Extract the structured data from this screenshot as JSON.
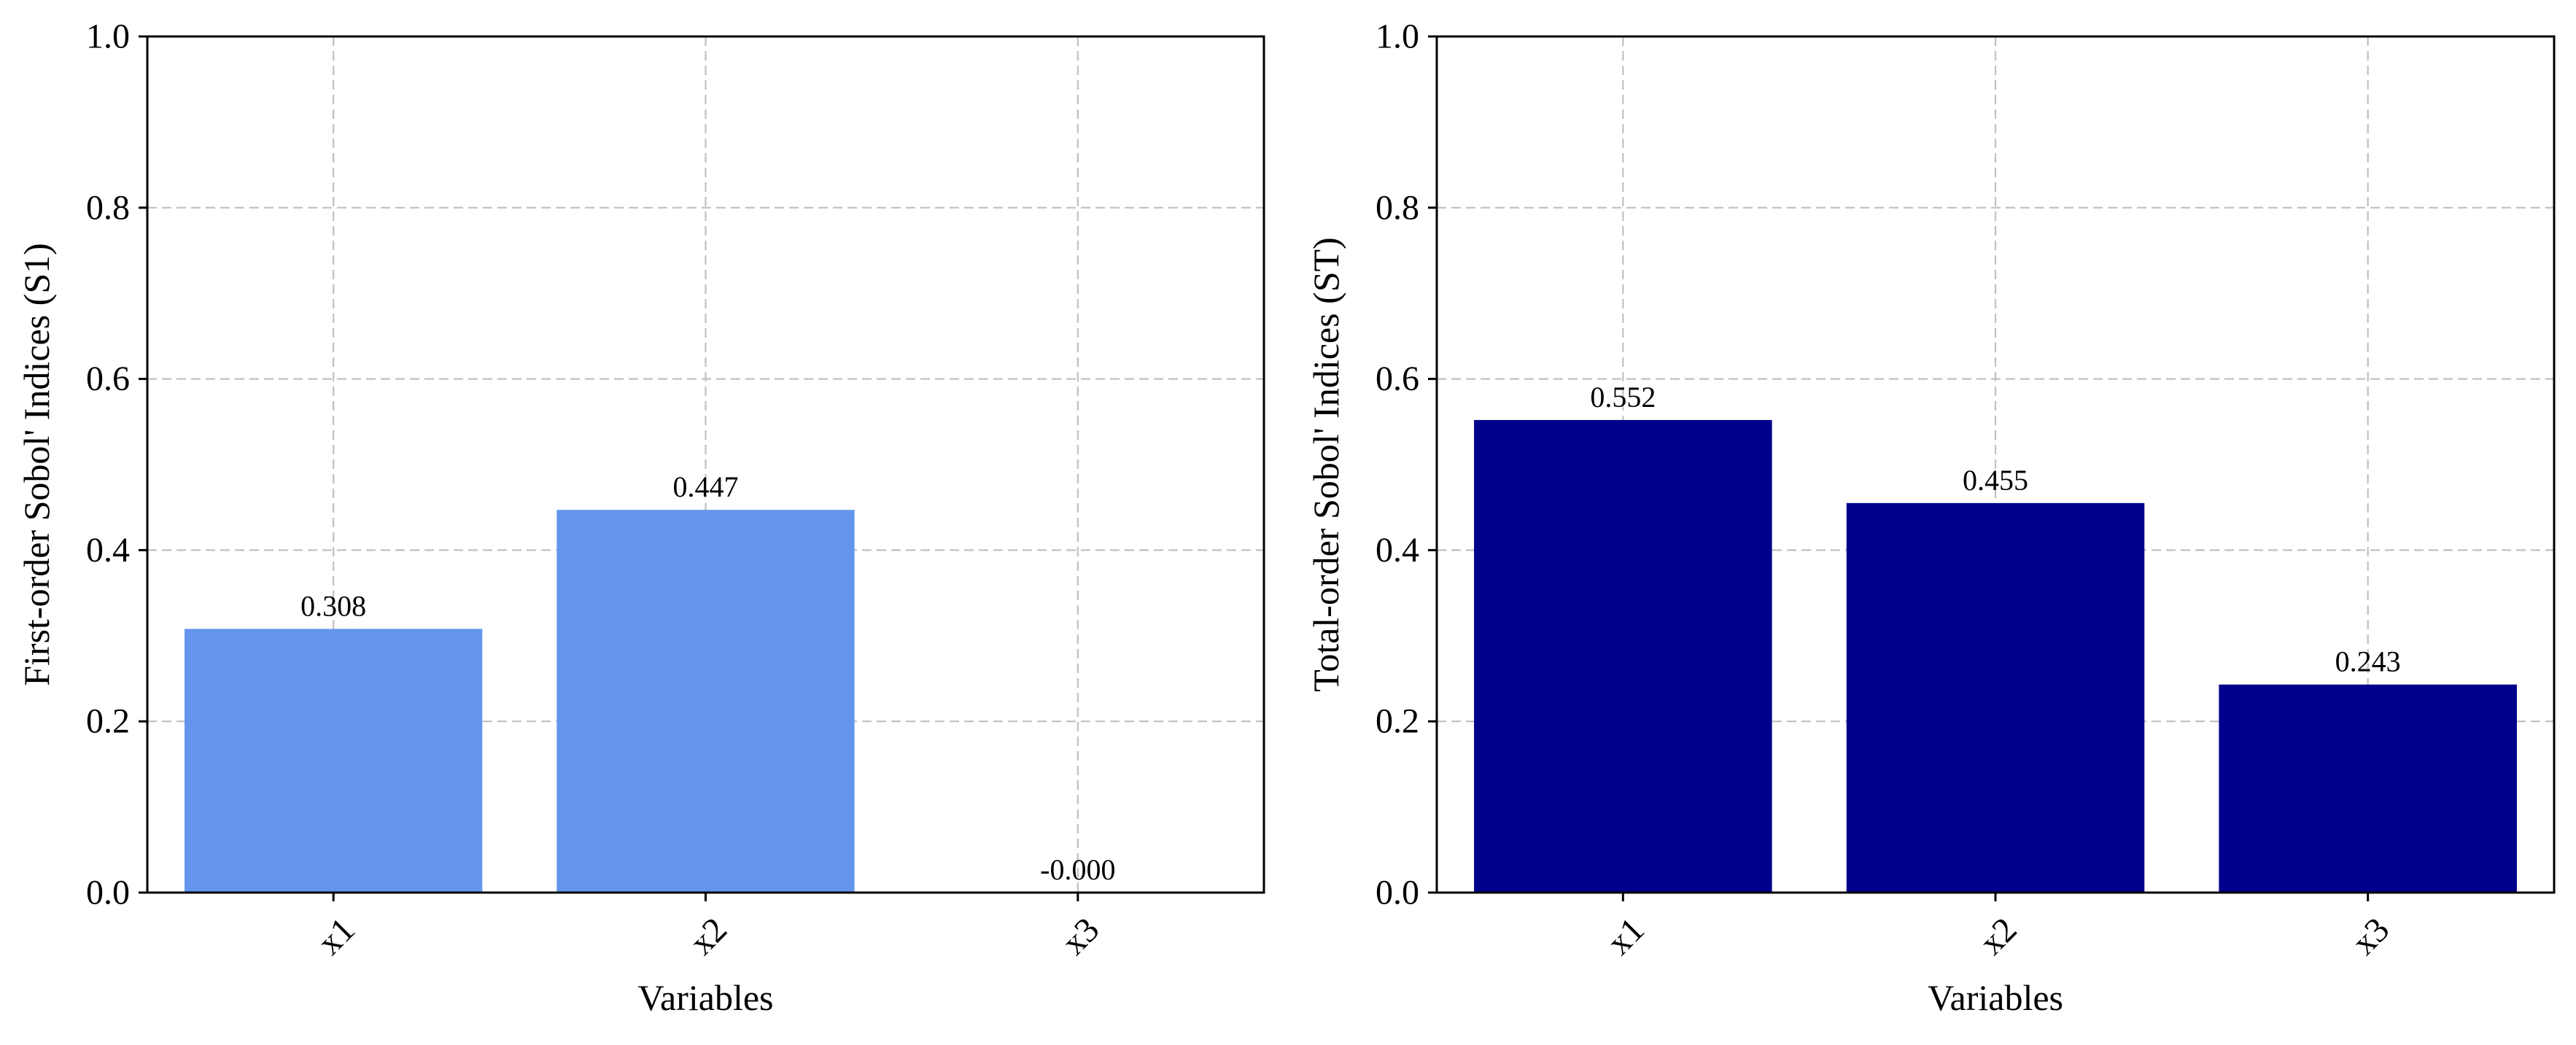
{
  "chart_data": [
    {
      "type": "bar",
      "categories": [
        "x1",
        "x2",
        "x3"
      ],
      "values": [
        0.308,
        0.447,
        -0.0
      ],
      "value_labels": [
        "0.308",
        "0.447",
        "-0.000"
      ],
      "xlabel": "Variables",
      "ylabel": "First-order Sobol' Indices (S1)",
      "ylim": [
        0,
        1.0
      ],
      "yticks": [
        0.0,
        0.2,
        0.4,
        0.6,
        0.8,
        1.0
      ],
      "ytick_labels": [
        "0.0",
        "0.2",
        "0.4",
        "0.6",
        "0.8",
        "1.0"
      ],
      "grid": true,
      "color": "#6495ED"
    },
    {
      "type": "bar",
      "categories": [
        "x1",
        "x2",
        "x3"
      ],
      "values": [
        0.552,
        0.455,
        0.243
      ],
      "value_labels": [
        "0.552",
        "0.455",
        "0.243"
      ],
      "xlabel": "Variables",
      "ylabel": "Total-order Sobol' Indices (ST)",
      "ylim": [
        0,
        1.0
      ],
      "yticks": [
        0.0,
        0.2,
        0.4,
        0.6,
        0.8,
        1.0
      ],
      "ytick_labels": [
        "0.0",
        "0.2",
        "0.4",
        "0.6",
        "0.8",
        "1.0"
      ],
      "grid": true,
      "color": "#00008B"
    }
  ]
}
